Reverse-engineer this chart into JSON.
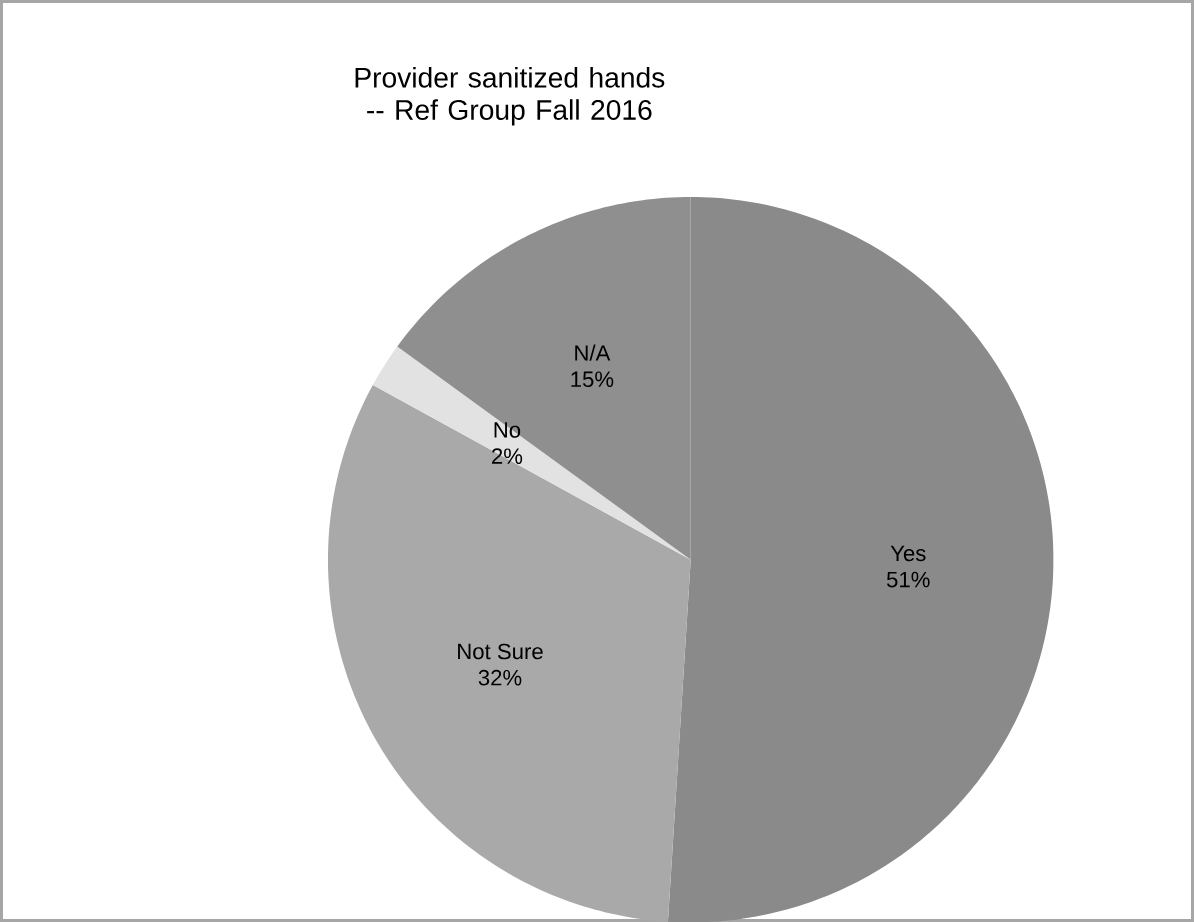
{
  "chart_data": {
    "type": "pie",
    "title": "Provider sanitized hands -- Ref Group   Fall 2016",
    "categories": [
      "Yes",
      "Not Sure",
      "No",
      "N/A"
    ],
    "values": [
      51,
      32,
      2,
      15
    ],
    "value_labels": [
      "51%",
      "32%",
      "2%",
      "15%"
    ],
    "colors": [
      "#8a8a8a",
      "#a9a9a9",
      "#e2e2e2",
      "#8f8f8f"
    ]
  }
}
